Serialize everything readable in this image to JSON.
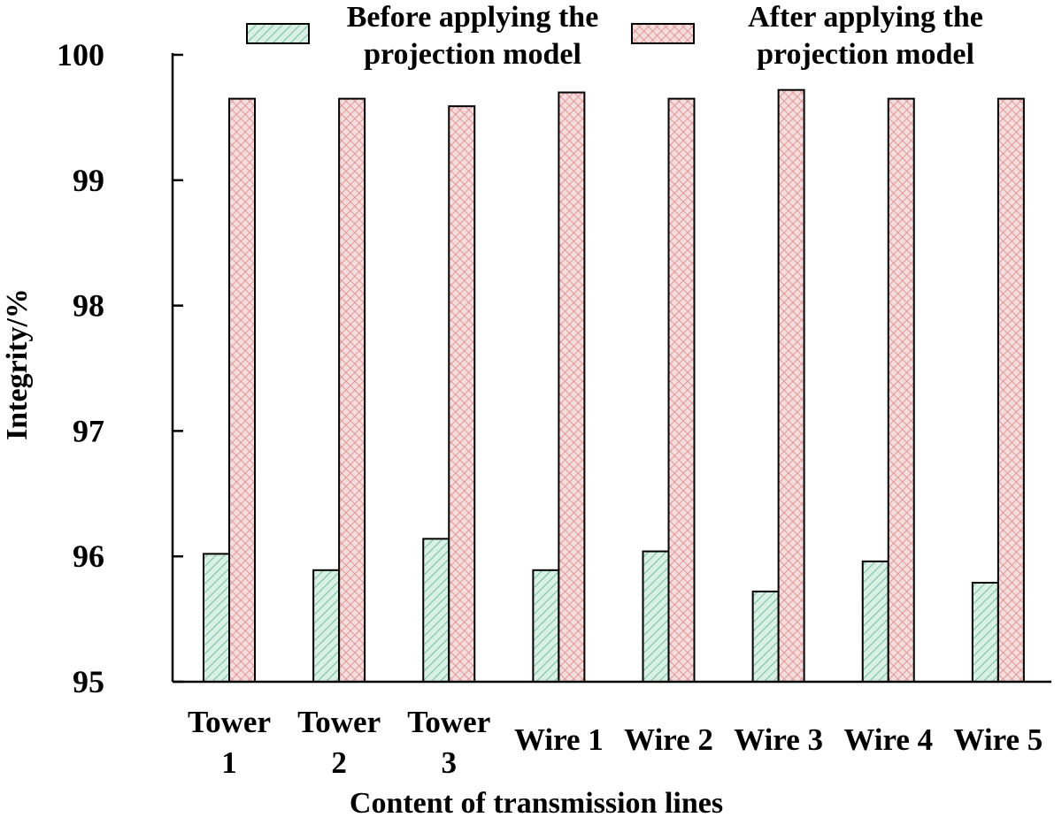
{
  "chart_data": {
    "type": "bar",
    "xlabel": "Content of transmission lines",
    "ylabel": "Integrity/%",
    "ylim": [
      95,
      100
    ],
    "yticks": [
      "95",
      "96",
      "97",
      "98",
      "99",
      "100"
    ],
    "grid": false,
    "legend_position": "top",
    "categories": [
      [
        "Tower",
        "1"
      ],
      [
        "Tower",
        "2"
      ],
      [
        "Tower",
        "3"
      ],
      [
        "Wire 1"
      ],
      [
        "Wire 2"
      ],
      [
        "Wire 3"
      ],
      [
        "Wire 4"
      ],
      [
        "Wire 5"
      ]
    ],
    "series": [
      {
        "name": [
          "Before applying the",
          "projection model"
        ],
        "values": [
          96.02,
          95.89,
          96.14,
          95.89,
          96.04,
          95.72,
          95.96,
          95.79
        ],
        "color": "#d9f0e6",
        "hatch_color": "#7fbf9f",
        "pattern": "diagonal"
      },
      {
        "name": [
          "After applying the",
          "projection model"
        ],
        "values": [
          99.65,
          99.65,
          99.59,
          99.7,
          99.65,
          99.72,
          99.65,
          99.65
        ],
        "color": "#f6dcdc",
        "hatch_color": "#d98a8a",
        "pattern": "crosshatch"
      }
    ]
  }
}
